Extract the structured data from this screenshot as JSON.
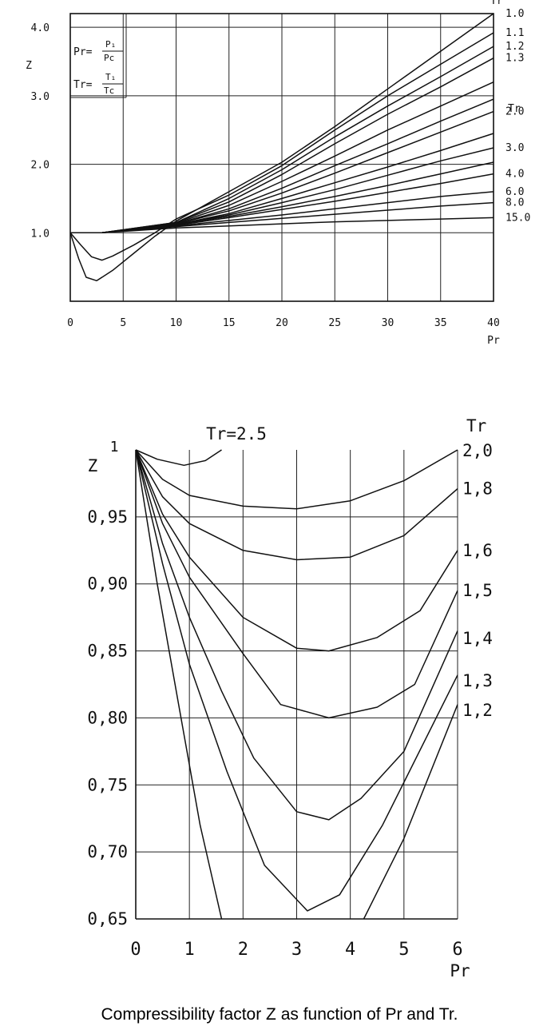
{
  "caption": "Compressibility factor Z as function of Pr and Tr.",
  "chart_data": [
    {
      "type": "line",
      "ylabel": "Z",
      "xlabel": "Pr",
      "xlim": [
        0,
        40
      ],
      "ylim": [
        0,
        4.2
      ],
      "x_ticks": [
        "0",
        "5",
        "10",
        "15",
        "20",
        "25",
        "30",
        "35",
        "40"
      ],
      "y_ticks": [
        "1.0",
        "2.0",
        "3.0",
        "4.0"
      ],
      "y_tick_values": [
        1,
        2,
        3,
        4
      ],
      "formula_pr": {
        "lhs": "Pr=",
        "num": "P₁",
        "den": "Pc"
      },
      "formula_tr": {
        "lhs": "Tr=",
        "num": "T₁",
        "den": "Tc"
      },
      "series_header_top": "Tr",
      "series_header_mid": "Tr",
      "series": [
        {
          "name": "1.0",
          "points": [
            [
              0,
              1.0
            ],
            [
              0.8,
              0.62
            ],
            [
              1.5,
              0.35
            ],
            [
              2.5,
              0.3
            ],
            [
              4,
              0.45
            ],
            [
              6,
              0.7
            ],
            [
              8,
              0.95
            ],
            [
              10,
              1.17
            ],
            [
              15,
              1.6
            ],
            [
              20,
              2.03
            ],
            [
              25,
              2.55
            ],
            [
              30,
              3.1
            ],
            [
              35,
              3.65
            ],
            [
              40,
              4.2
            ]
          ]
        },
        {
          "name": "1.1",
          "points": [
            [
              0,
              1.0
            ],
            [
              1,
              0.82
            ],
            [
              2,
              0.65
            ],
            [
              3,
              0.6
            ],
            [
              4,
              0.66
            ],
            [
              6,
              0.82
            ],
            [
              8,
              1.0
            ],
            [
              10,
              1.2
            ],
            [
              15,
              1.55
            ],
            [
              20,
              1.98
            ],
            [
              25,
              2.5
            ],
            [
              30,
              3.0
            ],
            [
              35,
              3.46
            ],
            [
              40,
              3.92
            ]
          ]
        },
        {
          "name": "1.2",
          "points": [
            [
              0,
              1.0
            ],
            [
              3,
              1.0
            ],
            [
              10,
              1.15
            ],
            [
              15,
              1.5
            ],
            [
              20,
              1.92
            ],
            [
              25,
              2.4
            ],
            [
              30,
              2.85
            ],
            [
              35,
              3.28
            ],
            [
              40,
              3.72
            ]
          ]
        },
        {
          "name": "1.3",
          "points": [
            [
              0,
              1.0
            ],
            [
              3,
              1.0
            ],
            [
              10,
              1.15
            ],
            [
              15,
              1.45
            ],
            [
              20,
              1.85
            ],
            [
              25,
              2.3
            ],
            [
              30,
              2.73
            ],
            [
              35,
              3.13
            ],
            [
              40,
              3.55
            ]
          ]
        },
        {
          "name": "",
          "points": [
            [
              0,
              1.0
            ],
            [
              3,
              1.0
            ],
            [
              10,
              1.14
            ],
            [
              15,
              1.4
            ],
            [
              20,
              1.75
            ],
            [
              25,
              2.12
            ],
            [
              30,
              2.5
            ],
            [
              35,
              2.85
            ],
            [
              40,
              3.2
            ]
          ]
        },
        {
          "name": "",
          "points": [
            [
              0,
              1.0
            ],
            [
              3,
              1.0
            ],
            [
              10,
              1.13
            ],
            [
              15,
              1.35
            ],
            [
              20,
              1.65
            ],
            [
              25,
              1.98
            ],
            [
              30,
              2.3
            ],
            [
              35,
              2.63
            ],
            [
              40,
              2.95
            ]
          ]
        },
        {
          "name": "2.0",
          "points": [
            [
              0,
              1.0
            ],
            [
              3,
              1.0
            ],
            [
              10,
              1.13
            ],
            [
              15,
              1.32
            ],
            [
              20,
              1.58
            ],
            [
              25,
              1.87
            ],
            [
              30,
              2.17
            ],
            [
              35,
              2.47
            ],
            [
              40,
              2.77
            ]
          ]
        },
        {
          "name": "",
          "points": [
            [
              0,
              1.0
            ],
            [
              3,
              1.0
            ],
            [
              10,
              1.12
            ],
            [
              15,
              1.28
            ],
            [
              20,
              1.5
            ],
            [
              25,
              1.73
            ],
            [
              30,
              1.96
            ],
            [
              35,
              2.2
            ],
            [
              40,
              2.45
            ]
          ]
        },
        {
          "name": "3.0",
          "points": [
            [
              0,
              1.0
            ],
            [
              3,
              1.0
            ],
            [
              10,
              1.12
            ],
            [
              15,
              1.26
            ],
            [
              20,
              1.44
            ],
            [
              25,
              1.63
            ],
            [
              30,
              1.84
            ],
            [
              35,
              2.05
            ],
            [
              40,
              2.24
            ]
          ]
        },
        {
          "name": "",
          "points": [
            [
              0,
              1.0
            ],
            [
              3,
              1.0
            ],
            [
              10,
              1.12
            ],
            [
              15,
              1.24
            ],
            [
              20,
              1.38
            ],
            [
              25,
              1.53
            ],
            [
              30,
              1.69
            ],
            [
              35,
              1.86
            ],
            [
              40,
              2.03
            ]
          ]
        },
        {
          "name": "4.0",
          "points": [
            [
              0,
              1.0
            ],
            [
              3,
              1.0
            ],
            [
              10,
              1.11
            ],
            [
              15,
              1.22
            ],
            [
              20,
              1.34
            ],
            [
              25,
              1.46
            ],
            [
              30,
              1.59
            ],
            [
              35,
              1.72
            ],
            [
              40,
              1.86
            ]
          ]
        },
        {
          "name": "6.0",
          "points": [
            [
              0,
              1.0
            ],
            [
              3,
              1.0
            ],
            [
              10,
              1.1
            ],
            [
              15,
              1.18
            ],
            [
              20,
              1.26
            ],
            [
              25,
              1.35
            ],
            [
              30,
              1.44
            ],
            [
              35,
              1.53
            ],
            [
              40,
              1.6
            ]
          ]
        },
        {
          "name": "8.0",
          "points": [
            [
              0,
              1.0
            ],
            [
              3,
              1.0
            ],
            [
              10,
              1.09
            ],
            [
              15,
              1.15
            ],
            [
              20,
              1.21
            ],
            [
              25,
              1.27
            ],
            [
              30,
              1.33
            ],
            [
              35,
              1.39
            ],
            [
              40,
              1.44
            ]
          ]
        },
        {
          "name": "15.0",
          "points": [
            [
              0,
              1.0
            ],
            [
              3,
              1.0
            ],
            [
              10,
              1.07
            ],
            [
              15,
              1.1
            ],
            [
              20,
              1.13
            ],
            [
              25,
              1.16
            ],
            [
              30,
              1.18
            ],
            [
              35,
              1.2
            ],
            [
              40,
              1.22
            ]
          ]
        }
      ]
    },
    {
      "type": "line",
      "title": "Tr=2.5",
      "ylabel": "Z",
      "xlabel": "Pr",
      "xlim": [
        0,
        6
      ],
      "ylim": [
        0.65,
        1.0
      ],
      "x_ticks": [
        "0",
        "1",
        "2",
        "3",
        "4",
        "5",
        "6"
      ],
      "y_ticks": [
        "0,65",
        "0,70",
        "0,75",
        "0,80",
        "0,85",
        "0,90",
        "0,95",
        "1"
      ],
      "y_tick_values": [
        0.65,
        0.7,
        0.75,
        0.8,
        0.85,
        0.9,
        0.95,
        1.0
      ],
      "series_header": "Tr",
      "series": [
        {
          "name": "",
          "points": [
            [
              0,
              1.0
            ],
            [
              0.4,
              0.993
            ],
            [
              0.9,
              0.9885
            ],
            [
              1.3,
              0.992
            ],
            [
              1.6,
              1.0
            ]
          ]
        },
        {
          "name": "2,0",
          "points": [
            [
              0,
              1.0
            ],
            [
              0.5,
              0.978
            ],
            [
              1,
              0.966
            ],
            [
              2,
              0.958
            ],
            [
              3,
              0.956
            ],
            [
              4,
              0.962
            ],
            [
              5,
              0.977
            ],
            [
              6,
              1.0
            ]
          ]
        },
        {
          "name": "1,8",
          "points": [
            [
              0,
              1.0
            ],
            [
              0.5,
              0.965
            ],
            [
              1,
              0.945
            ],
            [
              2,
              0.925
            ],
            [
              3,
              0.918
            ],
            [
              4,
              0.92
            ],
            [
              5,
              0.936
            ],
            [
              6,
              0.971
            ]
          ]
        },
        {
          "name": "1,6",
          "points": [
            [
              0,
              1.0
            ],
            [
              0.5,
              0.952
            ],
            [
              1,
              0.92
            ],
            [
              2,
              0.875
            ],
            [
              3,
              0.852
            ],
            [
              3.6,
              0.85
            ],
            [
              4.5,
              0.86
            ],
            [
              5.3,
              0.88
            ],
            [
              6,
              0.925
            ]
          ]
        },
        {
          "name": "1,5",
          "points": [
            [
              0,
              1.0
            ],
            [
              0.5,
              0.945
            ],
            [
              1,
              0.905
            ],
            [
              2,
              0.848
            ],
            [
              2.7,
              0.81
            ],
            [
              3.6,
              0.8
            ],
            [
              4.5,
              0.808
            ],
            [
              5.2,
              0.825
            ],
            [
              6,
              0.895
            ]
          ]
        },
        {
          "name": "1,4",
          "points": [
            [
              0,
              1.0
            ],
            [
              0.5,
              0.93
            ],
            [
              1,
              0.875
            ],
            [
              1.6,
              0.82
            ],
            [
              2.2,
              0.77
            ],
            [
              3,
              0.73
            ],
            [
              3.6,
              0.724
            ],
            [
              4.2,
              0.74
            ],
            [
              5,
              0.775
            ],
            [
              6,
              0.865
            ]
          ]
        },
        {
          "name": "1,3",
          "points": [
            [
              0,
              1.0
            ],
            [
              0.5,
              0.915
            ],
            [
              1,
              0.84
            ],
            [
              1.7,
              0.76
            ],
            [
              2.4,
              0.69
            ],
            [
              3.2,
              0.656
            ],
            [
              3.8,
              0.668
            ],
            [
              4.6,
              0.72
            ],
            [
              6,
              0.832
            ]
          ]
        },
        {
          "name": "1,2",
          "points": [
            [
              0,
              1.0
            ],
            [
              0.4,
              0.9
            ],
            [
              0.8,
              0.81
            ],
            [
              1.2,
              0.72
            ],
            [
              1.6,
              0.65
            ]
          ]
        },
        {
          "name": "",
          "points": [
            [
              4.25,
              0.65
            ],
            [
              5,
              0.71
            ],
            [
              6,
              0.81
            ]
          ]
        }
      ]
    }
  ]
}
